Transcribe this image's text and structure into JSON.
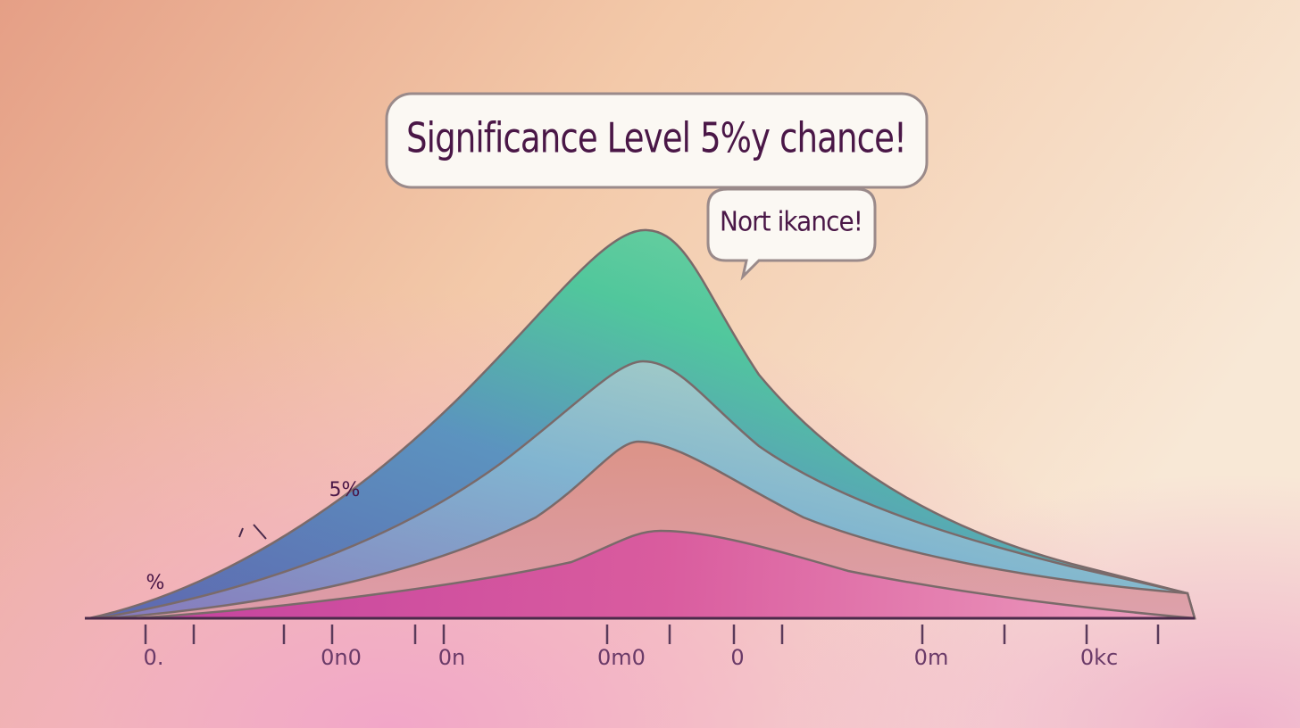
{
  "title_bubble": {
    "text": "Significance Level 5%y chance!"
  },
  "callout_bubble": {
    "text": "Nort ikance!"
  },
  "curve_labels": [
    "5%",
    "%"
  ],
  "axis_labels": [
    "0.",
    "0n0",
    "0n",
    "0m0",
    "0",
    "0m",
    "0kc"
  ]
}
